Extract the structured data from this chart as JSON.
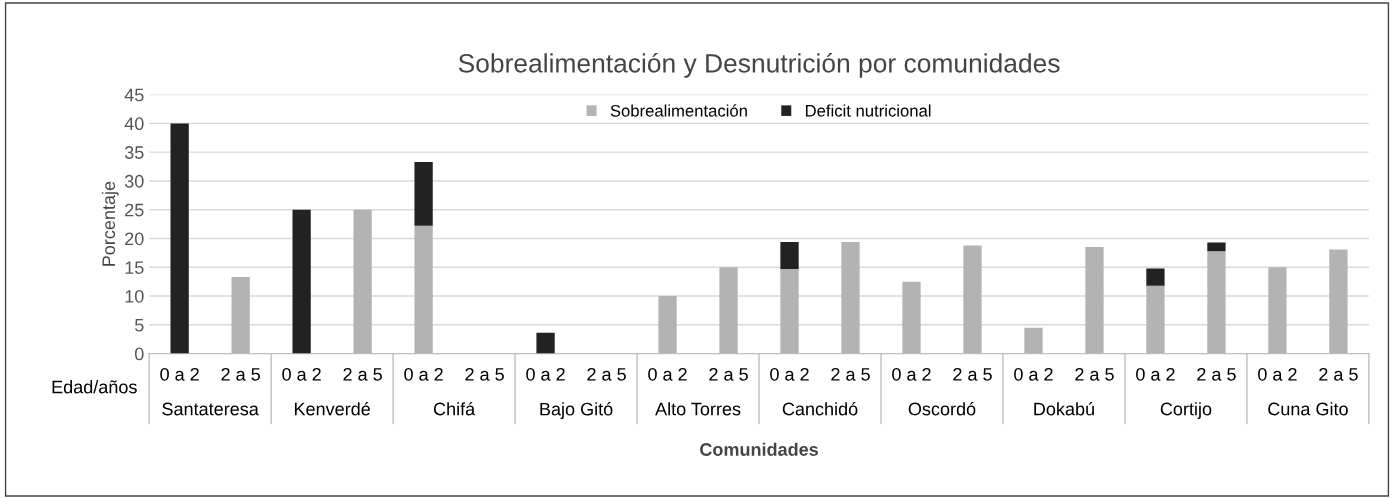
{
  "chart_data": {
    "type": "bar",
    "title": "Sobrealimentación y Desnutrición por comunidades",
    "xlabel": "Comunidades",
    "ylabel": "Porcentaje",
    "categories": [
      "0 a 2",
      "2 a 5",
      "0 a 2",
      "2 a 5",
      "0 a 2",
      "2 a 5",
      "0 a 2",
      "2 a 5",
      "0 a 2",
      "2 a 5",
      "0 a 2",
      "2 a 5",
      "0 a 2",
      "2 a 5",
      "0 a 2",
      "2 a 5",
      "0 a 2",
      "2 a 5",
      "0 a 2",
      "2 a 5"
    ],
    "annotations": [
      "Edad/años",
      "Santateresa",
      "Kenverdé",
      "Chifá",
      "Bajo Gitó",
      "Alto Torres",
      "Canchidó",
      "Oscordó",
      "Dokabú",
      "Cortijo",
      "Cuna Gito"
    ],
    "stacked": true,
    "series": [
      {
        "name": "Sobrealimentación",
        "color": "#b3b3b3",
        "values": [
          0,
          13.3,
          0,
          25,
          22.2,
          0,
          0,
          0,
          10,
          15,
          14.7,
          19.4,
          12.5,
          18.8,
          4.5,
          18.5,
          11.8,
          17.8,
          15,
          18.1
        ]
      },
      {
        "name": "Deficit nutricional",
        "color": "#222222",
        "values": [
          40,
          0,
          25,
          0,
          11.1,
          0,
          3.6,
          0,
          0,
          0,
          4.7,
          0,
          0,
          0,
          0,
          0,
          3,
          1.5,
          0,
          0
        ]
      }
    ],
    "ylim": [
      0,
      45
    ],
    "yticks": [
      0,
      5,
      10,
      15,
      20,
      25,
      30,
      35,
      40,
      45
    ],
    "grid": "y",
    "legend": "top"
  }
}
